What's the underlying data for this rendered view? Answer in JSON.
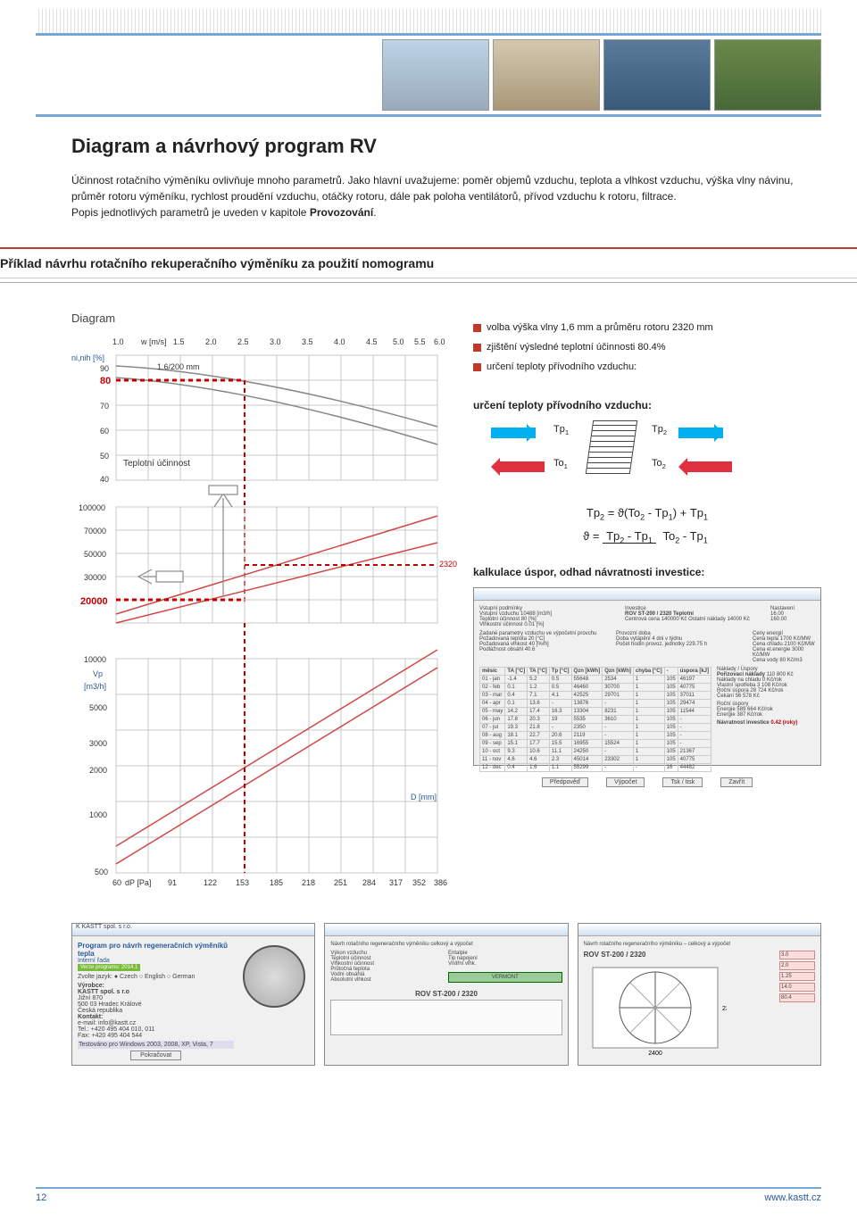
{
  "page": {
    "title": "Diagram a návrhový program RV",
    "intro_1": "Účinnost rotačního výměníku ovlivňuje mnoho parametrů. Jako hlavní uvažujeme: poměr objemů vzduchu, teplota a vlhkost vzduchu, výška vlny návinu, průměr rotoru výměníku, rychlost proudění vzduchu, otáčky rotoru, dále pak poloha ventilátorů, přívod vzduchu k rotoru, filtrace.",
    "intro_2": "Popis jednotlivých parametrů je uveden v kapitole ",
    "intro_bold": "Provozování",
    "section_title": "Příklad návrhu rotačního rekuperačního výměníku za použití nomogramu",
    "diagram_label": "Diagram",
    "bullets": [
      "volba výška vlny 1,6 mm a průměru rotoru 2320 mm",
      "zjištění výsledné teplotní účinnosti 80.4%",
      "určení teploty přívodního vzduchu:"
    ],
    "flow_heading": "určení teploty přívodního vzduchu:",
    "flow_labels": {
      "tp1": "Tp",
      "tp2": "Tp",
      "to1": "To",
      "to2": "To"
    },
    "formula1_lhs": "Tp",
    "formula1_rhs": " = ϑ(To",
    "formula1_mid": " - Tp",
    "formula1_end": ") + Tp",
    "formula2_lhs": "ϑ =",
    "formula2_num_a": "Tp",
    "formula2_num_b": " - Tp",
    "formula2_den_a": "To",
    "formula2_den_b": " - Tp",
    "calc_heading": "kalkulace úspor, odhad návratnosti investice:",
    "page_number": "12",
    "footer_url": "www.kastt.cz"
  },
  "nomogram": {
    "top_axis": {
      "label": "w [m/s]",
      "ticks": [
        "1.0",
        "1.5",
        "2.0",
        "2.5",
        "3.0",
        "3.5",
        "4.0",
        "4.5",
        "5.0",
        "5.5",
        "6.0"
      ]
    },
    "left_upper": {
      "label": "ni,nih [%]",
      "ticks": [
        "90",
        "80",
        "70",
        "60",
        "50",
        "40"
      ],
      "highlight": "80",
      "highlight_color": "#c00000"
    },
    "curve_label": "1.6/200 mm",
    "mid_label": "Teplotní účinnost",
    "left_mid": {
      "ticks": [
        "100000",
        "70000",
        "50000",
        "30000",
        "20000"
      ],
      "highlight": "20000",
      "highlight_color": "#c00000"
    },
    "right_mid_mark": {
      "value": "2320",
      "color": "#c00000"
    },
    "left_lower_label": "Vp",
    "left_lower_unit": "[m3/h]",
    "left_lower": {
      "ticks": [
        "10000",
        "5000",
        "3000",
        "2000",
        "1000",
        "500"
      ]
    },
    "right_lower_label": "D [mm]",
    "bottom_axis": {
      "label": "dP [Pa]",
      "ticks": [
        "60",
        "91",
        "122",
        "153",
        "185",
        "218",
        "251",
        "284",
        "317",
        "352",
        "386"
      ]
    },
    "colors": {
      "grid": "#c8c8c8",
      "dash_red": "#c00000",
      "diag_red": "#d04848",
      "back": "#ffffff"
    }
  },
  "calc_window": {
    "title": "Kalkulace úspor, odhad návratnosti investice",
    "device": "ROV ST-200 / 2320 Teplotní",
    "fields": {
      "vstup_vzduchu": "10488  [m3/h]",
      "teplotni_ucinnost": "80  [%]",
      "vlhkostni_ucinnost": "0.01  [%]",
      "centrova_cena": "140000  Kč",
      "ostatni_naklady": "14000  Kč",
      "nastaveni_a": "16.00",
      "nastaveni_b": "160.00",
      "vosp": "10",
      "vlep": "60",
      "doba_vytapeni": "4",
      "pozad_teplota": "20  [°C]",
      "pozad_vlhkost": "40  [%rh]",
      "podlaznost": "40.6",
      "prumer_hodn": "229.75 h",
      "cena_tepla": "1700  Kč/MW",
      "cena_chladu": "2100  Kč/MW",
      "cena_el": "3000  Kč/MW",
      "cena_vody": "80  Kč/m3"
    },
    "table": {
      "header": [
        "měsíc",
        "TA [°C]",
        "TA [°C]",
        "Tp [°C]",
        "Qzn [kWh]",
        "Qzn [kWh]",
        "chyba [°C]",
        "-",
        "úspora [kJ]"
      ],
      "rows": [
        [
          "01 - jan",
          "-1.4",
          "5.2",
          "0.5",
          "55648",
          "2534",
          "1",
          "105",
          "46197"
        ],
        [
          "02 - feb",
          "0.1",
          "1.2",
          "0.5",
          "46460",
          "30700",
          "1",
          "105",
          "40775"
        ],
        [
          "03 - mar",
          "0.4",
          "7.1",
          "4.1",
          "42525",
          "29701",
          "1",
          "105",
          "37011"
        ],
        [
          "04 - apr",
          "0.1",
          "13.6",
          "-",
          "13876",
          "-",
          "1",
          "105",
          "29474"
        ],
        [
          "05 - may",
          "14.2",
          "17.4",
          "16.3",
          "13304",
          "8231",
          "1",
          "105",
          "11544"
        ],
        [
          "06 - jun",
          "17.8",
          "20.3",
          "19",
          "5535",
          "3610",
          "1",
          "105",
          "-"
        ],
        [
          "07 - jul",
          "19.3",
          "21.8",
          "-",
          "2350",
          "-",
          "1",
          "105",
          "-"
        ],
        [
          "08 - aug",
          "18.1",
          "22.7",
          "20.6",
          "2119",
          "-",
          "1",
          "105",
          "-"
        ],
        [
          "09 - sep",
          "15.1",
          "17.7",
          "15.5",
          "16955",
          "15524",
          "1",
          "105",
          "-"
        ],
        [
          "10 - oct",
          "9.3",
          "10.6",
          "11.1",
          "24250",
          "-",
          "1",
          "105",
          "21367"
        ],
        [
          "11 - nov",
          "4.6",
          "4.6",
          "2.3",
          "45014",
          "23302",
          "1",
          "105",
          "40775"
        ],
        [
          "12 - dec",
          "0.4",
          "1.6",
          "1.1",
          "55299",
          "-",
          "-",
          "16",
          "44482"
        ]
      ],
      "summary": {
        "provozni_naklady": "110 800 Kč",
        "naklady_chladu": "0 Kč/rok",
        "vlastni_spotreba": "3 108 Kč/rok",
        "rocni_uspora": "28 724 Kč/rok",
        "cekani": "56 578 Kč",
        "rocni_uspora2": "589 664 Kč/rok",
        "energie": "387 Kč/rok",
        "navratnost": "0.42 (roky)",
        "navratnost_color": "#c00000"
      }
    },
    "buttons": [
      "Předpověď",
      "Výpočet",
      "Tsk / tisk",
      "Zavřít"
    ]
  },
  "bottom_windows": {
    "prog": {
      "title": "K KASTT spol. s r.o.",
      "heading": "Program pro návrh regeneračních výměníků tepla",
      "subheading": "Interní řada",
      "version": "Verze programu: 2014.1",
      "lang_label": "Zvolte jazyk:",
      "langs": [
        "Czech",
        "English",
        "German"
      ],
      "vendor_label": "Výrobce:",
      "vendor": "KASTT spol. s r.o",
      "addr": "Jižní 870\n500 03 Hradec Králové\nČeská republika",
      "contact_label": "Kontakt:",
      "email": "e-mail: info@kastt.cz",
      "tel": "Tel.: +420 495 404 010, 011",
      "fax": "Fax: +420 495 404 544",
      "testline": "Testováno pro Windows 2003, 2008, XP, Vista, 7",
      "button": "Pokračovat"
    },
    "detail": {
      "title": "Návrh rotačního regeneračního výměníku celkový a výpočet",
      "fields": [
        "Výkon vzduchu",
        "Teplotní účinnost",
        "Vlhkostní účinnost",
        "Průtočná teplota",
        "Vodní obsáhlá",
        "Absolutní vlhkost",
        "Entalpie",
        "Tip napojení",
        "Vnitřní vlhk."
      ],
      "device": "ROV ST-200 / 2320",
      "vendor": "VERMONT"
    },
    "graph": {
      "title": "Návrh rotačního regeneračního výměníku – celkový a výpočet",
      "device": "ROV ST-200 / 2320",
      "side_vals": [
        "3.0",
        "2.0",
        "1.25",
        "14.0",
        "80.4"
      ]
    }
  }
}
